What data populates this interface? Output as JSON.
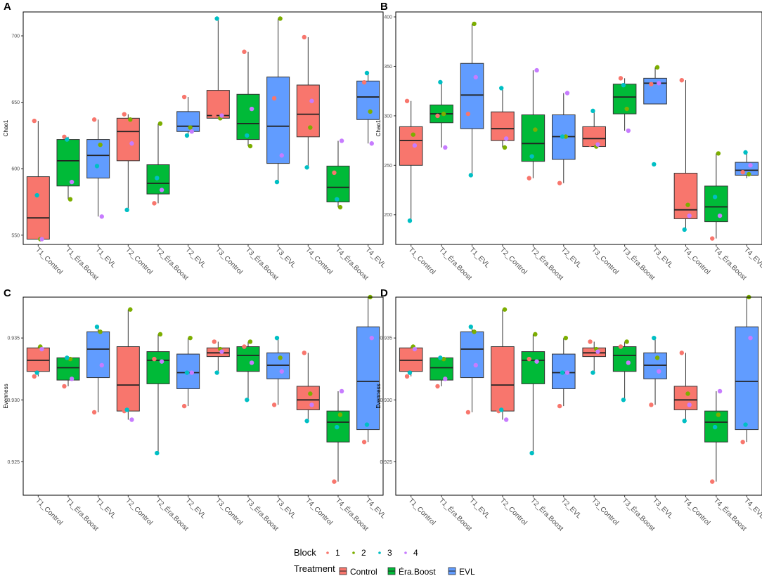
{
  "colors": {
    "control": "#F8766D",
    "era_boost": "#00BA38",
    "evl": "#619CFF",
    "block1": "#F8766D",
    "block2": "#7CAE00",
    "block3": "#00BFC4",
    "block4": "#C77CFF"
  },
  "categories": [
    "T1_Control",
    "T1_Éra.Boost",
    "T1_EVL",
    "T2_Control",
    "T2_Éra.Boost",
    "T2_EVL",
    "T3_Control",
    "T3_Éra.Boost",
    "T3_EVL",
    "T4_Control",
    "T4_Éra.Boost",
    "T4_EVL"
  ],
  "treatment_of_category": [
    "Control",
    "Éra.Boost",
    "EVL",
    "Control",
    "Éra.Boost",
    "EVL",
    "Control",
    "Éra.Boost",
    "EVL",
    "Control",
    "Éra.Boost",
    "EVL"
  ],
  "chart_data": [
    {
      "panel": "A",
      "type": "box",
      "ylabel": "Chao1",
      "ylim": [
        543,
        718
      ],
      "yticks": [
        550,
        600,
        650,
        700
      ],
      "tick_labels": [
        "550",
        "600",
        "650",
        "700"
      ],
      "boxes": [
        {
          "q1": 547,
          "median": 563,
          "q3": 594,
          "wmin": 547,
          "wmax": 636,
          "points": [
            636,
            547,
            580,
            547
          ]
        },
        {
          "q1": 587,
          "median": 606,
          "q3": 622,
          "wmin": 577,
          "wmax": 624,
          "points": [
            624,
            577,
            622,
            590
          ]
        },
        {
          "q1": 593,
          "median": 610,
          "q3": 622,
          "wmin": 564,
          "wmax": 637,
          "points": [
            637,
            618,
            602,
            564
          ]
        },
        {
          "q1": 606,
          "median": 628,
          "q3": 638,
          "wmin": 569,
          "wmax": 641,
          "points": [
            641,
            637,
            569,
            619
          ]
        },
        {
          "q1": 581,
          "median": 589,
          "q3": 603,
          "wmin": 574,
          "wmax": 634,
          "points": [
            574,
            634,
            593,
            584
          ]
        },
        {
          "q1": 628,
          "median": 632,
          "q3": 643,
          "wmin": 625,
          "wmax": 654,
          "points": [
            654,
            631,
            625,
            628
          ]
        },
        {
          "q1": 638,
          "median": 640,
          "q3": 659,
          "wmin": 638,
          "wmax": 713,
          "points": [
            640,
            638,
            713,
            640
          ]
        },
        {
          "q1": 622,
          "median": 634,
          "q3": 656,
          "wmin": 617,
          "wmax": 688,
          "points": [
            688,
            617,
            625,
            645
          ]
        },
        {
          "q1": 604,
          "median": 632,
          "q3": 669,
          "wmin": 590,
          "wmax": 713,
          "points": [
            653,
            713,
            590,
            610
          ]
        },
        {
          "q1": 624,
          "median": 641,
          "q3": 663,
          "wmin": 601,
          "wmax": 699,
          "points": [
            699,
            631,
            601,
            651
          ]
        },
        {
          "q1": 575,
          "median": 586,
          "q3": 602,
          "wmin": 571,
          "wmax": 621,
          "points": [
            597,
            571,
            577,
            621
          ]
        },
        {
          "q1": 637,
          "median": 654,
          "q3": 666,
          "wmin": 619,
          "wmax": 672,
          "points": [
            665,
            643,
            672,
            619
          ]
        }
      ]
    },
    {
      "panel": "B",
      "type": "box",
      "ylabel": "Chao1",
      "ylim": [
        170,
        405
      ],
      "yticks": [
        200,
        250,
        300,
        350,
        400
      ],
      "tick_labels": [
        "200",
        "250",
        "300",
        "350",
        "400"
      ],
      "boxes": [
        {
          "q1": 250,
          "median": 275,
          "q3": 289,
          "wmin": 194,
          "wmax": 315,
          "points": [
            315,
            281,
            194,
            270
          ]
        },
        {
          "q1": 293,
          "median": 302,
          "q3": 311,
          "wmin": 268,
          "wmax": 334,
          "points": [
            300,
            302,
            334,
            268
          ]
        },
        {
          "q1": 287,
          "median": 321,
          "q3": 353,
          "wmin": 240,
          "wmax": 393,
          "points": [
            302,
            393,
            240,
            339
          ]
        },
        {
          "q1": 275,
          "median": 287,
          "q3": 304,
          "wmin": 268,
          "wmax": 328,
          "points": [
            278,
            268,
            328,
            277
          ]
        },
        {
          "q1": 254,
          "median": 272,
          "q3": 301,
          "wmin": 237,
          "wmax": 346,
          "points": [
            237,
            286,
            259,
            346
          ]
        },
        {
          "q1": 256,
          "median": 279,
          "q3": 301,
          "wmin": 232,
          "wmax": 323,
          "points": [
            232,
            279,
            279,
            323
          ]
        },
        {
          "q1": 269,
          "median": 277,
          "q3": 289,
          "wmin": 269,
          "wmax": 305,
          "points": [
            271,
            269,
            305,
            271
          ]
        },
        {
          "q1": 302,
          "median": 319,
          "q3": 332,
          "wmin": 285,
          "wmax": 338,
          "points": [
            338,
            307,
            331,
            285
          ]
        },
        {
          "q1": 312,
          "median": 333,
          "q3": 338,
          "wmin": 312,
          "wmax": 349,
          "points": [
            332,
            349,
            251,
            333
          ]
        },
        {
          "q1": 196,
          "median": 205,
          "q3": 242,
          "wmin": 185,
          "wmax": 336,
          "points": [
            336,
            210,
            185,
            199
          ]
        },
        {
          "q1": 193,
          "median": 208,
          "q3": 229,
          "wmin": 176,
          "wmax": 262,
          "points": [
            176,
            262,
            218,
            199
          ]
        },
        {
          "q1": 240,
          "median": 245,
          "q3": 253,
          "wmin": 237,
          "wmax": 263,
          "points": [
            243,
            241,
            263,
            250
          ]
        }
      ]
    },
    {
      "panel": "C",
      "type": "box",
      "ylabel": "Evenness",
      "ylim": [
        0.9223,
        0.9383
      ],
      "yticks": [
        0.925,
        0.93,
        0.935
      ],
      "tick_labels": [
        "0.925",
        "0.930",
        "0.935"
      ],
      "boxes": [
        {
          "q1": 0.9323,
          "median": 0.9332,
          "q3": 0.9342,
          "wmin": 0.9319,
          "wmax": 0.9343,
          "points": [
            0.9319,
            0.9343,
            0.9322,
            0.9341
          ]
        },
        {
          "q1": 0.9316,
          "median": 0.9326,
          "q3": 0.9334,
          "wmin": 0.9311,
          "wmax": 0.9334,
          "points": [
            0.9311,
            0.9333,
            0.9334,
            0.9317
          ]
        },
        {
          "q1": 0.9318,
          "median": 0.9341,
          "q3": 0.9355,
          "wmin": 0.929,
          "wmax": 0.9359,
          "points": [
            0.929,
            0.9355,
            0.9359,
            0.9328
          ]
        },
        {
          "q1": 0.9291,
          "median": 0.9312,
          "q3": 0.9343,
          "wmin": 0.9284,
          "wmax": 0.9373,
          "points": [
            0.9291,
            0.9373,
            0.9292,
            0.9284
          ]
        },
        {
          "q1": 0.9313,
          "median": 0.9332,
          "q3": 0.9339,
          "wmin": 0.9257,
          "wmax": 0.9353,
          "points": [
            0.9333,
            0.9353,
            0.9257,
            0.9331
          ]
        },
        {
          "q1": 0.9309,
          "median": 0.9322,
          "q3": 0.9337,
          "wmin": 0.9295,
          "wmax": 0.935,
          "points": [
            0.9295,
            0.935,
            0.9322,
            0.9322
          ]
        },
        {
          "q1": 0.9335,
          "median": 0.9338,
          "q3": 0.9342,
          "wmin": 0.9322,
          "wmax": 0.9347,
          "points": [
            0.9347,
            0.9341,
            0.9322,
            0.9339
          ]
        },
        {
          "q1": 0.9323,
          "median": 0.9336,
          "q3": 0.9343,
          "wmin": 0.93,
          "wmax": 0.9347,
          "points": [
            0.9343,
            0.9347,
            0.93,
            0.933
          ]
        },
        {
          "q1": 0.9317,
          "median": 0.9328,
          "q3": 0.9338,
          "wmin": 0.9296,
          "wmax": 0.935,
          "points": [
            0.9296,
            0.9334,
            0.935,
            0.9323
          ]
        },
        {
          "q1": 0.9292,
          "median": 0.93,
          "q3": 0.9311,
          "wmin": 0.9283,
          "wmax": 0.9338,
          "points": [
            0.9338,
            0.9305,
            0.9283,
            0.9296
          ]
        },
        {
          "q1": 0.9266,
          "median": 0.9282,
          "q3": 0.9291,
          "wmin": 0.9234,
          "wmax": 0.9307,
          "points": [
            0.9234,
            0.9288,
            0.9278,
            0.9307
          ]
        },
        {
          "q1": 0.9276,
          "median": 0.9315,
          "q3": 0.9359,
          "wmin": 0.9266,
          "wmax": 0.9383,
          "points": [
            0.9266,
            0.9383,
            0.928,
            0.935
          ]
        }
      ]
    },
    {
      "panel": "D",
      "type": "box",
      "ylabel": "Evenness",
      "ylim": [
        0.9223,
        0.9383
      ],
      "yticks": [
        0.925,
        0.93,
        0.935
      ],
      "tick_labels": [
        "0.925",
        "0.930",
        "0.935"
      ],
      "boxes": [
        {
          "q1": 0.9323,
          "median": 0.9332,
          "q3": 0.9342,
          "wmin": 0.9319,
          "wmax": 0.9343,
          "points": [
            0.9319,
            0.9343,
            0.9322,
            0.9341
          ]
        },
        {
          "q1": 0.9316,
          "median": 0.9326,
          "q3": 0.9334,
          "wmin": 0.9311,
          "wmax": 0.9334,
          "points": [
            0.9311,
            0.9333,
            0.9334,
            0.9317
          ]
        },
        {
          "q1": 0.9318,
          "median": 0.9341,
          "q3": 0.9355,
          "wmin": 0.929,
          "wmax": 0.9359,
          "points": [
            0.929,
            0.9355,
            0.9359,
            0.9328
          ]
        },
        {
          "q1": 0.9291,
          "median": 0.9312,
          "q3": 0.9343,
          "wmin": 0.9284,
          "wmax": 0.9373,
          "points": [
            0.9291,
            0.9373,
            0.9292,
            0.9284
          ]
        },
        {
          "q1": 0.9313,
          "median": 0.9332,
          "q3": 0.9339,
          "wmin": 0.9257,
          "wmax": 0.9353,
          "points": [
            0.9333,
            0.9353,
            0.9257,
            0.9331
          ]
        },
        {
          "q1": 0.9309,
          "median": 0.9322,
          "q3": 0.9337,
          "wmin": 0.9295,
          "wmax": 0.935,
          "points": [
            0.9295,
            0.935,
            0.9322,
            0.9322
          ]
        },
        {
          "q1": 0.9335,
          "median": 0.9338,
          "q3": 0.9342,
          "wmin": 0.9322,
          "wmax": 0.9347,
          "points": [
            0.9347,
            0.9341,
            0.9322,
            0.9339
          ]
        },
        {
          "q1": 0.9323,
          "median": 0.9336,
          "q3": 0.9343,
          "wmin": 0.93,
          "wmax": 0.9347,
          "points": [
            0.9343,
            0.9347,
            0.93,
            0.933
          ]
        },
        {
          "q1": 0.9317,
          "median": 0.9328,
          "q3": 0.9338,
          "wmin": 0.9296,
          "wmax": 0.935,
          "points": [
            0.9296,
            0.9334,
            0.935,
            0.9323
          ]
        },
        {
          "q1": 0.9292,
          "median": 0.93,
          "q3": 0.9311,
          "wmin": 0.9283,
          "wmax": 0.9338,
          "points": [
            0.9338,
            0.9305,
            0.9283,
            0.9296
          ]
        },
        {
          "q1": 0.9266,
          "median": 0.9282,
          "q3": 0.9291,
          "wmin": 0.9234,
          "wmax": 0.9307,
          "points": [
            0.9234,
            0.9288,
            0.9278,
            0.9307
          ]
        },
        {
          "q1": 0.9276,
          "median": 0.9315,
          "q3": 0.9359,
          "wmin": 0.9266,
          "wmax": 0.9383,
          "points": [
            0.9266,
            0.9383,
            0.928,
            0.935
          ]
        }
      ]
    }
  ],
  "legend": {
    "block_title": "Block",
    "block_labels": [
      "1",
      "2",
      "3",
      "4"
    ],
    "treatment_title": "Treatment",
    "treatment_labels": [
      "Control",
      "Éra.Boost",
      "EVL"
    ]
  }
}
